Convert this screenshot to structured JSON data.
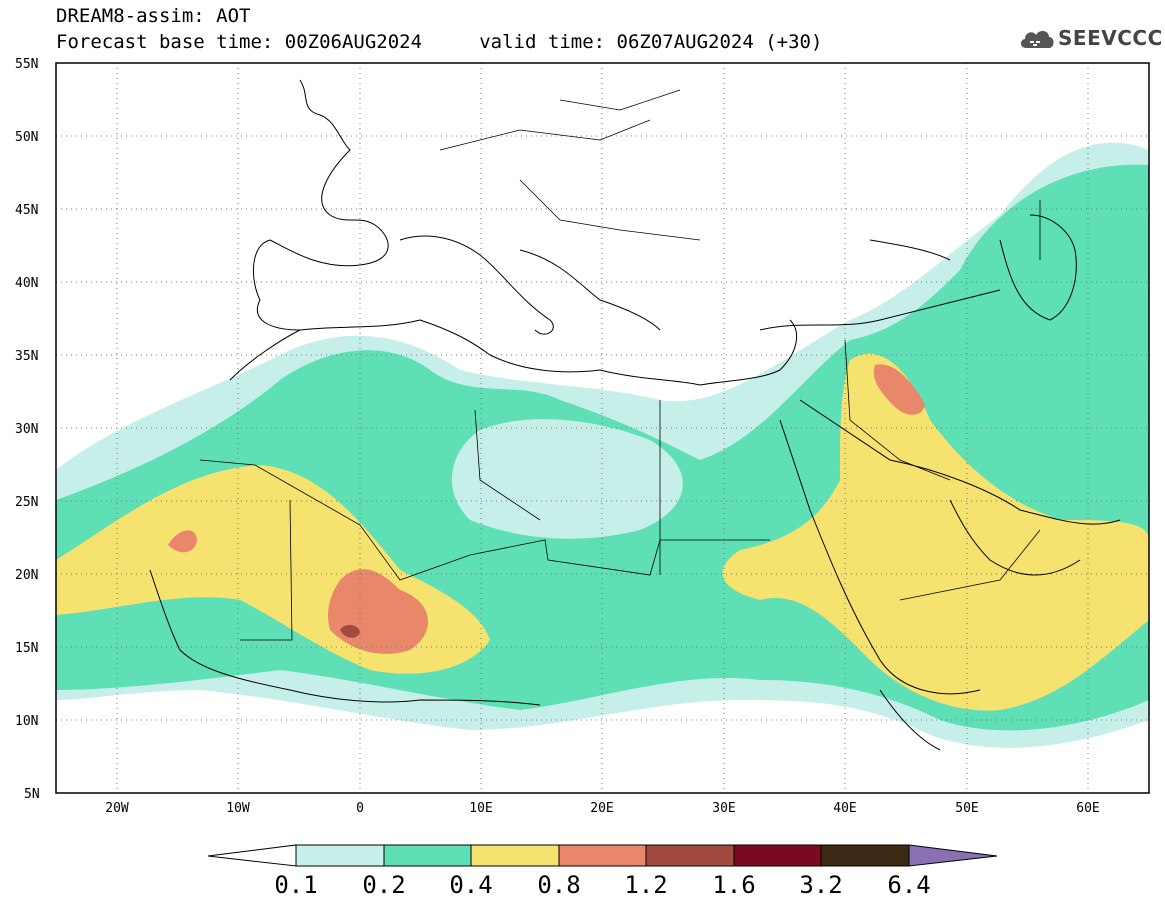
{
  "header": {
    "line1": "DREAM8-assim: AOT",
    "line2": "Forecast base time: 00Z06AUG2024     valid time: 06Z07AUG2024 (+30)"
  },
  "logo": {
    "text": "SEEVCCC",
    "icon": "cloud-icon"
  },
  "map": {
    "lat_labels": [
      "55N",
      "50N",
      "45N",
      "40N",
      "35N",
      "30N",
      "25N",
      "20N",
      "15N",
      "10N",
      "5N"
    ],
    "lon_labels": [
      "20W",
      "10W",
      "0",
      "10E",
      "20E",
      "30E",
      "40E",
      "50E",
      "60E"
    ],
    "lon_range": [
      -25,
      65
    ],
    "lat_range": [
      5,
      55
    ],
    "grid": "dotted"
  },
  "colorbar": {
    "labels": [
      "0.1",
      "0.2",
      "0.4",
      "0.8",
      "1.2",
      "1.6",
      "3.2",
      "6.4"
    ],
    "colors": [
      "#ffffff",
      "#c6efe9",
      "#5edfb6",
      "#f6e26f",
      "#e9876a",
      "#a34a40",
      "#7a0a22",
      "#3d2a14",
      "#8a6fb2"
    ]
  }
}
